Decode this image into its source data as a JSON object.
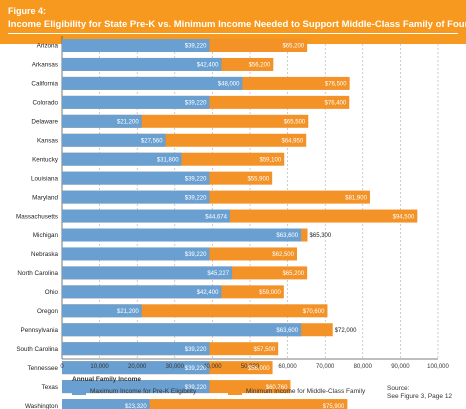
{
  "figure": {
    "label": "Figure 4:",
    "title": "Income Eligibility for State Pre-K vs. Minimum Income Needed to Support Middle-Class Family of Four"
  },
  "colors": {
    "header": "#f6991e",
    "prek": "#6aa0d1",
    "minimum": "#f29227",
    "grid": "#aaaaaa"
  },
  "chart_data": {
    "type": "bar",
    "orientation": "horizontal",
    "stacked": false,
    "categories": [
      "Arizona",
      "Arkansas",
      "California",
      "Colorado",
      "Delaware",
      "Kansas",
      "Kentucky",
      "Louisiana",
      "Maryland",
      "Massachusetts",
      "Michigan",
      "Nebraska",
      "North Carolina",
      "Ohio",
      "Oregon",
      "Pennsylvania",
      "South Carolina",
      "Tennessee",
      "Texas",
      "Washington"
    ],
    "series": [
      {
        "name": "Maximum Income for Pre-K Eligibility",
        "values": [
          39220,
          42400,
          48000,
          39220,
          21200,
          27560,
          31800,
          39220,
          39220,
          44674,
          63600,
          39220,
          45227,
          42400,
          21200,
          63600,
          39220,
          39220,
          39220,
          23320
        ],
        "labels": [
          "$39,220",
          "$42,400",
          "$48,000",
          "$39,220",
          "$21,200",
          "$27,560",
          "$31,800",
          "$39,220",
          "$39,220",
          "$44,674",
          "$63,600",
          "$39,220",
          "$45,227",
          "$42,400",
          "$21,200",
          "$63,600",
          "$39,220",
          "$39,220",
          "$39,220",
          "$23,320"
        ]
      },
      {
        "name": "Minimum Income for Middle-Class Family",
        "values": [
          65200,
          56200,
          76500,
          76400,
          65500,
          64950,
          59100,
          55900,
          81900,
          94500,
          65300,
          62500,
          65200,
          59000,
          70600,
          72000,
          57500,
          56000,
          60760,
          75900
        ],
        "labels": [
          "$65,200",
          "$56,200",
          "$76,500",
          "$76,400",
          "$65,500",
          "$64,950",
          "$59,100",
          "$55,900",
          "$81,900",
          "$94,500",
          "$65,300",
          "$62,500",
          "$65,200",
          "$59,000",
          "$70,600",
          "$72,000",
          "$57,500",
          "$56,000",
          "$60,760",
          "$75,900"
        ]
      }
    ],
    "xlim": [
      0,
      100000
    ],
    "xticks": [
      "0",
      "10,000",
      "20,000",
      "30,000",
      "40,000",
      "50,000",
      "60,000",
      "70,000",
      "80,000",
      "90,000",
      "100,000"
    ],
    "xlabel": "Annual Family Income",
    "grid": "vertical dashed"
  },
  "source": {
    "line1": "Source:",
    "line2": "See Figure 3, Page 12"
  }
}
